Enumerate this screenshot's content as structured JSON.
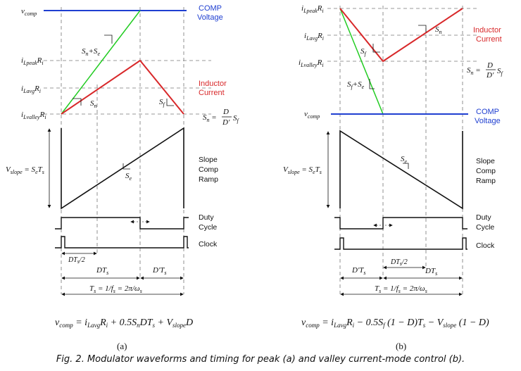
{
  "panel_a": {
    "label": "(a)",
    "v_comp": "v",
    "v_comp_sub": "comp",
    "comp_voltage": [
      "COMP",
      "Voltage"
    ],
    "inductor_current": [
      "Inductor",
      "Current"
    ],
    "i_lpeak": [
      "i",
      "Lpeak",
      "R",
      "i"
    ],
    "i_lavg": [
      "i",
      "Lavg",
      "R",
      "i"
    ],
    "i_lvalley": [
      "i",
      "Lvalley",
      "R",
      "i"
    ],
    "sn_plus_se": "S",
    "sn_plus_se_mid": "n",
    "sn_plus_se_tail": "+S",
    "sn_plus_se_end": "e",
    "sn": [
      "S",
      "n"
    ],
    "sf": [
      "S",
      "f"
    ],
    "se": [
      "S",
      "e"
    ],
    "sn_formula": [
      "S",
      "n",
      " = ",
      "D",
      "D'",
      "S",
      "f"
    ],
    "vslope": [
      "V",
      "slope",
      " = S",
      "e",
      "T",
      "s"
    ],
    "slope_comp_ramp": [
      "Slope",
      "Comp",
      "Ramp"
    ],
    "duty_cycle": [
      "Duty",
      "Cycle"
    ],
    "clock": "Clock",
    "dts_half": [
      "DT",
      "s",
      "/2"
    ],
    "dts": [
      "DT",
      "s"
    ],
    "dprime_ts": [
      "D'T",
      "s"
    ],
    "ts_formula": [
      "T",
      "s",
      " = 1/",
      "f",
      "s",
      " = 2π/ω",
      "s"
    ],
    "equation": "v_comp = i_Lavg R_i + 0.5 S_n D T_s + V_slope D"
  },
  "panel_b": {
    "label": "(b)",
    "comp_voltage": [
      "COMP",
      "Voltage"
    ],
    "inductor_current": [
      "Inductor",
      "Current"
    ],
    "sf_plus_se": "S",
    "sn_formula": [
      "S",
      "n",
      " = ",
      "D",
      "D'",
      "S",
      "f"
    ],
    "slope_comp_ramp": [
      "Slope",
      "Comp",
      "Ramp"
    ],
    "duty_cycle": [
      "Duty",
      "Cycle"
    ],
    "clock": "Clock",
    "dprime_ts": [
      "D'T",
      "s"
    ],
    "dts_half": [
      "DT",
      "s",
      "/2"
    ],
    "dts": [
      "DT",
      "s"
    ],
    "equation": "v_comp = i_Lavg R_i − 0.5 S_f (1 − D) T_s − V_slope (1 − D)"
  },
  "caption": "Fig. 2. Modulator waveforms and timing for peak (a) and valley current-mode control (b).",
  "colors": {
    "blue": "#1f3fd1",
    "red": "#d8282a",
    "green": "#22cc22"
  }
}
